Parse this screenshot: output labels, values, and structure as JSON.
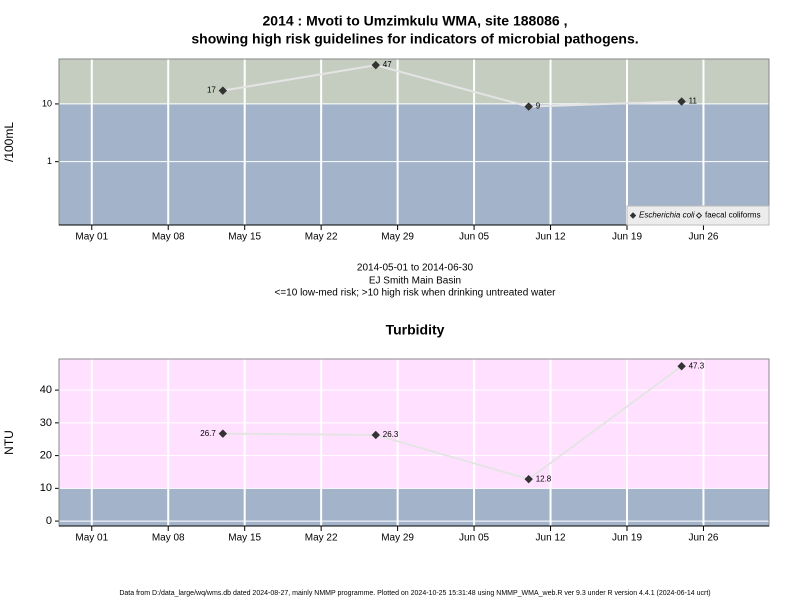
{
  "chart_data": [
    {
      "type": "line",
      "title": [
        "2014 : Mvoti to Umzimkulu WMA, site 188086 ,",
        "showing high risk guidelines for indicators of microbial pathogens."
      ],
      "ylabel": "/100mL",
      "log_y": true,
      "x": [
        "2014-05-13",
        "2014-05-27",
        "2014-06-10",
        "2014-06-24"
      ],
      "xlim": [
        "2014-04-28",
        "2014-07-02"
      ],
      "xticks": [
        {
          "value": "2014-05-01",
          "label": "May 01"
        },
        {
          "value": "2014-05-08",
          "label": "May 08"
        },
        {
          "value": "2014-05-15",
          "label": "May 15"
        },
        {
          "value": "2014-05-22",
          "label": "May 22"
        },
        {
          "value": "2014-05-29",
          "label": "May 29"
        },
        {
          "value": "2014-06-05",
          "label": "Jun 05"
        },
        {
          "value": "2014-06-12",
          "label": "Jun 12"
        },
        {
          "value": "2014-06-19",
          "label": "Jun 19"
        },
        {
          "value": "2014-06-26",
          "label": "Jun 26"
        }
      ],
      "ylim": [
        0.08,
        60
      ],
      "yticks": [
        1,
        10
      ],
      "grid": true,
      "threshold": 10,
      "above_color": "#c5cdc1",
      "below_color": "#a3b3c9",
      "line_color": "#e4e4e4",
      "legend": "lower right",
      "series": [
        {
          "name": "Escherichia coli",
          "color": "#333333",
          "marker": "filled",
          "values": [
            17,
            47,
            9,
            11
          ]
        },
        {
          "name": "faecal coliforms",
          "color": "#333333",
          "marker": "open",
          "values": [
            null,
            null,
            null,
            null
          ]
        }
      ]
    },
    {
      "type": "line",
      "title": [
        "Turbidity"
      ],
      "ylabel": "NTU",
      "log_y": false,
      "x": [
        "2014-05-13",
        "2014-05-27",
        "2014-06-10",
        "2014-06-24"
      ],
      "xlim": [
        "2014-04-28",
        "2014-07-02"
      ],
      "xticks": [
        {
          "value": "2014-05-01",
          "label": "May 01"
        },
        {
          "value": "2014-05-08",
          "label": "May 08"
        },
        {
          "value": "2014-05-15",
          "label": "May 15"
        },
        {
          "value": "2014-05-22",
          "label": "May 22"
        },
        {
          "value": "2014-05-29",
          "label": "May 29"
        },
        {
          "value": "2014-06-05",
          "label": "Jun 05"
        },
        {
          "value": "2014-06-12",
          "label": "Jun 12"
        },
        {
          "value": "2014-06-19",
          "label": "Jun 19"
        },
        {
          "value": "2014-06-26",
          "label": "Jun 26"
        }
      ],
      "ylim": [
        -1.5,
        49.5
      ],
      "yticks": [
        0,
        10,
        20,
        30,
        40
      ],
      "grid": true,
      "threshold": 10,
      "above_color": "#ffe1ff",
      "below_color": "#a3b3c9",
      "line_color": "#e4e4e4",
      "series": [
        {
          "name": "Turbidity",
          "color": "#333333",
          "marker": "filled",
          "values": [
            26.7,
            26.3,
            12.8,
            47.3
          ]
        }
      ]
    }
  ],
  "notes": [
    "2014-05-01 to 2014-06-30",
    "EJ Smith Main Basin",
    "<=10 low-med risk; >10 high risk when drinking untreated water"
  ],
  "footer": "Data from D:/data_large/wq/wms.db dated 2024-08-27, mainly NMMP programme. Plotted on 2024-10-25 15:31:48 using NMMP_WMA_web.R ver 9.3 under R version 4.4.1 (2024-06-14 ucrt)"
}
